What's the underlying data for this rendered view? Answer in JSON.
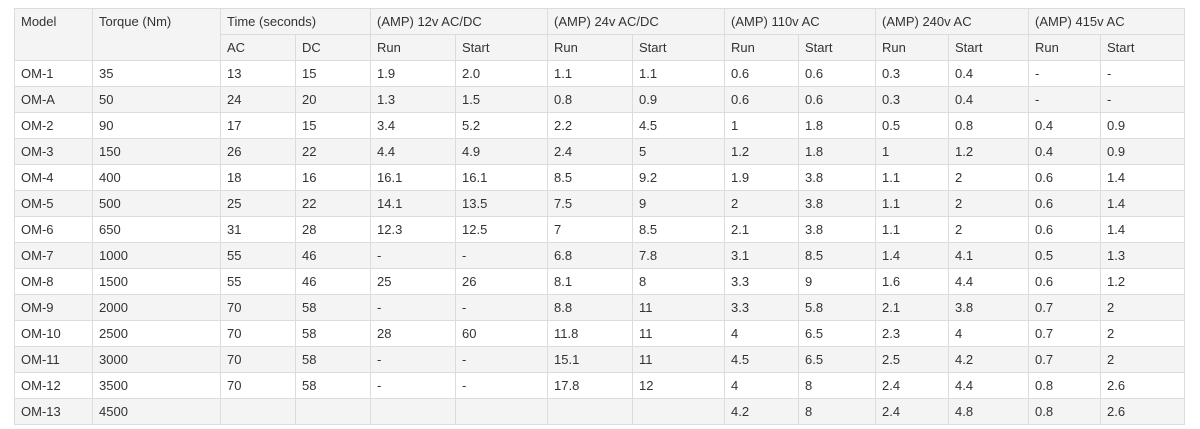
{
  "table": {
    "header_top": [
      "Model",
      "Torque (Nm)",
      "Time (seconds)",
      "(AMP) 12v AC/DC",
      "(AMP) 24v AC/DC",
      "(AMP) 110v AC",
      "(AMP) 240v AC",
      "(AMP) 415v AC"
    ],
    "header_sub": [
      "AC",
      "DC",
      "Run",
      "Start",
      "Run",
      "Start",
      "Run",
      "Start",
      "Run",
      "Start",
      "Run",
      "Start"
    ],
    "rows": [
      [
        "OM-1",
        "35",
        "13",
        "15",
        "1.9",
        "2.0",
        "1.1",
        "1.1",
        "0.6",
        "0.6",
        "0.3",
        "0.4",
        "-",
        "-"
      ],
      [
        "OM-A",
        "50",
        "24",
        "20",
        "1.3",
        "1.5",
        "0.8",
        "0.9",
        "0.6",
        "0.6",
        "0.3",
        "0.4",
        "-",
        "-"
      ],
      [
        "OM-2",
        "90",
        "17",
        "15",
        "3.4",
        "5.2",
        "2.2",
        "4.5",
        "1",
        "1.8",
        "0.5",
        "0.8",
        "0.4",
        "0.9"
      ],
      [
        "OM-3",
        "150",
        "26",
        "22",
        "4.4",
        "4.9",
        "2.4",
        "5",
        "1.2",
        "1.8",
        "1",
        "1.2",
        "0.4",
        "0.9"
      ],
      [
        "OM-4",
        "400",
        "18",
        "16",
        "16.1",
        "16.1",
        "8.5",
        "9.2",
        "1.9",
        "3.8",
        "1.1",
        "2",
        "0.6",
        "1.4"
      ],
      [
        "OM-5",
        "500",
        "25",
        "22",
        "14.1",
        "13.5",
        "7.5",
        "9",
        "2",
        "3.8",
        "1.1",
        "2",
        "0.6",
        "1.4"
      ],
      [
        "OM-6",
        "650",
        "31",
        "28",
        "12.3",
        "12.5",
        "7",
        "8.5",
        "2.1",
        "3.8",
        "1.1",
        "2",
        "0.6",
        "1.4"
      ],
      [
        "OM-7",
        "1000",
        "55",
        "46",
        "-",
        "-",
        "6.8",
        "7.8",
        "3.1",
        "8.5",
        "1.4",
        "4.1",
        "0.5",
        "1.3"
      ],
      [
        "OM-8",
        "1500",
        "55",
        "46",
        "25",
        "26",
        "8.1",
        "8",
        "3.3",
        "9",
        "1.6",
        "4.4",
        "0.6",
        "1.2"
      ],
      [
        "OM-9",
        "2000",
        "70",
        "58",
        "-",
        "-",
        "8.8",
        "11",
        "3.3",
        "5.8",
        "2.1",
        "3.8",
        "0.7",
        "2"
      ],
      [
        "OM-10",
        "2500",
        "70",
        "58",
        "28",
        "60",
        "11.8",
        "11",
        "4",
        "6.5",
        "2.3",
        "4",
        "0.7",
        "2"
      ],
      [
        "OM-11",
        "3000",
        "70",
        "58",
        "-",
        "-",
        "15.1",
        "11",
        "4.5",
        "6.5",
        "2.5",
        "4.2",
        "0.7",
        "2"
      ],
      [
        "OM-12",
        "3500",
        "70",
        "58",
        "-",
        "-",
        "17.8",
        "12",
        "4",
        "8",
        "2.4",
        "4.4",
        "0.8",
        "2.6"
      ],
      [
        "OM-13",
        "4500",
        null,
        null,
        null,
        null,
        null,
        null,
        "4.2",
        "8",
        "2.4",
        "4.8",
        "0.8",
        "2.6"
      ]
    ]
  }
}
